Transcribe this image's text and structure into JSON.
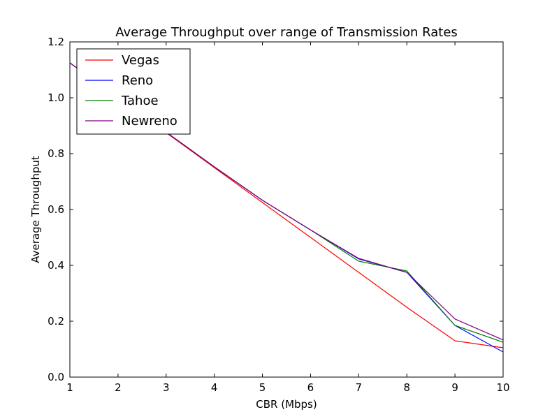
{
  "chart_data": {
    "type": "line",
    "title": "Average Throughput over range of Transmission Rates",
    "xlabel": "CBR (Mbps)",
    "ylabel": "Average Throughput",
    "xlim": [
      1,
      10
    ],
    "ylim": [
      0,
      1.2
    ],
    "xticks": [
      "1",
      "2",
      "3",
      "4",
      "5",
      "6",
      "7",
      "8",
      "9",
      "10"
    ],
    "yticks": [
      "0.0",
      "0.2",
      "0.4",
      "0.6",
      "0.8",
      "1.0",
      "1.2"
    ],
    "grid": false,
    "legend_position": "top-left",
    "x": [
      1,
      2,
      3,
      4,
      5,
      6,
      7,
      8,
      9,
      10
    ],
    "series": [
      {
        "name": "Vegas",
        "color": "#ff0000",
        "values": [
          1.125,
          1.0,
          0.875,
          0.75,
          0.625,
          0.5,
          0.375,
          0.25,
          0.13,
          0.105
        ]
      },
      {
        "name": "Reno",
        "color": "#0000ff",
        "values": [
          1.125,
          1.0,
          0.877,
          0.753,
          0.633,
          0.527,
          0.423,
          0.375,
          0.185,
          0.09
        ]
      },
      {
        "name": "Tahoe",
        "color": "#008000",
        "values": [
          1.125,
          1.0,
          0.877,
          0.753,
          0.633,
          0.527,
          0.415,
          0.38,
          0.185,
          0.125
        ]
      },
      {
        "name": "Newreno",
        "color": "#800080",
        "values": [
          1.125,
          1.0,
          0.877,
          0.753,
          0.633,
          0.527,
          0.425,
          0.375,
          0.208,
          0.133
        ]
      }
    ]
  }
}
